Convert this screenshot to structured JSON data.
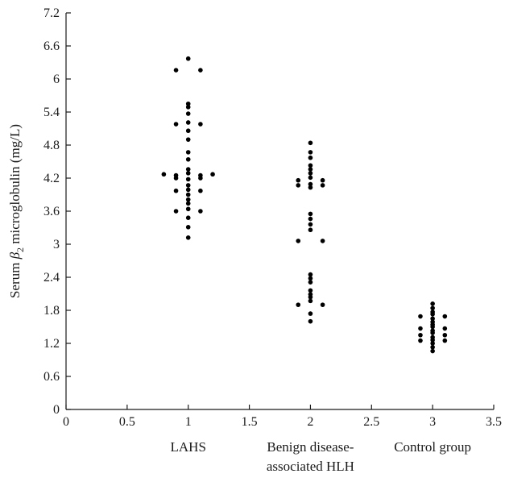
{
  "chart_data": {
    "type": "scatter",
    "ylabel": {
      "prefix": "Serum ",
      "beta": "β",
      "sub": "2",
      "suffix": " microglobulin (mg/L)"
    },
    "xlim": [
      0,
      3.5
    ],
    "ylim": [
      0,
      7.2
    ],
    "x_ticks": [
      "0",
      "0.5",
      "1",
      "1.5",
      "2",
      "2.5",
      "3",
      "3.5"
    ],
    "y_ticks": [
      "0",
      "0.6",
      "1.2",
      "1.8",
      "2.4",
      "3",
      "3.6",
      "4.2",
      "4.8",
      "5.4",
      "6",
      "6.6",
      "7.2"
    ],
    "grid": false,
    "groups": [
      {
        "x": 1,
        "label_lines": [
          "LAHS"
        ]
      },
      {
        "x": 2,
        "label_lines": [
          "Benign disease-",
          "associated HLH"
        ]
      },
      {
        "x": 3,
        "label_lines": [
          "Control group"
        ]
      }
    ],
    "points": [
      [
        1,
        6.37
      ],
      [
        0.9,
        6.16
      ],
      [
        1.1,
        6.16
      ],
      [
        1,
        5.55
      ],
      [
        1,
        5.49
      ],
      [
        1,
        5.37
      ],
      [
        1,
        5.21
      ],
      [
        0.9,
        5.18
      ],
      [
        1.1,
        5.18
      ],
      [
        1,
        5.06
      ],
      [
        1,
        4.9
      ],
      [
        1,
        4.67
      ],
      [
        1,
        4.54
      ],
      [
        1,
        4.36
      ],
      [
        0.8,
        4.27
      ],
      [
        0.9,
        4.25
      ],
      [
        1.1,
        4.25
      ],
      [
        1.2,
        4.27
      ],
      [
        1,
        4.29
      ],
      [
        0.9,
        4.2
      ],
      [
        1.1,
        4.2
      ],
      [
        1,
        4.18
      ],
      [
        1,
        4.07
      ],
      [
        1,
        3.99
      ],
      [
        0.9,
        3.97
      ],
      [
        1.1,
        3.97
      ],
      [
        1,
        3.9
      ],
      [
        1,
        3.81
      ],
      [
        1,
        3.74
      ],
      [
        1,
        3.64
      ],
      [
        0.9,
        3.6
      ],
      [
        1.1,
        3.6
      ],
      [
        1,
        3.48
      ],
      [
        1,
        3.31
      ],
      [
        1,
        3.12
      ],
      [
        2,
        4.84
      ],
      [
        2,
        4.67
      ],
      [
        2,
        4.57
      ],
      [
        2,
        4.43
      ],
      [
        2,
        4.36
      ],
      [
        2,
        4.29
      ],
      [
        2,
        4.21
      ],
      [
        1.9,
        4.16
      ],
      [
        2.1,
        4.16
      ],
      [
        1.9,
        4.07
      ],
      [
        2.1,
        4.07
      ],
      [
        2,
        4.09
      ],
      [
        2,
        4.03
      ],
      [
        2,
        3.55
      ],
      [
        2,
        3.46
      ],
      [
        2,
        3.36
      ],
      [
        2,
        3.26
      ],
      [
        1.9,
        3.06
      ],
      [
        2.1,
        3.06
      ],
      [
        2,
        2.45
      ],
      [
        2,
        2.38
      ],
      [
        2,
        2.31
      ],
      [
        2,
        2.16
      ],
      [
        2,
        2.09
      ],
      [
        2,
        2.04
      ],
      [
        2,
        1.97
      ],
      [
        1.9,
        1.9
      ],
      [
        2.1,
        1.9
      ],
      [
        2,
        1.74
      ],
      [
        2,
        1.6
      ],
      [
        3,
        1.92
      ],
      [
        3,
        1.84
      ],
      [
        3,
        1.77
      ],
      [
        3,
        1.73
      ],
      [
        2.9,
        1.69
      ],
      [
        3.1,
        1.69
      ],
      [
        3,
        1.65
      ],
      [
        3,
        1.59
      ],
      [
        3,
        1.54
      ],
      [
        3,
        1.5
      ],
      [
        2.9,
        1.47
      ],
      [
        3.1,
        1.47
      ],
      [
        3,
        1.43
      ],
      [
        3,
        1.39
      ],
      [
        2.9,
        1.35
      ],
      [
        3.1,
        1.35
      ],
      [
        3,
        1.31
      ],
      [
        2.9,
        1.25
      ],
      [
        3.1,
        1.25
      ],
      [
        3,
        1.26
      ],
      [
        3,
        1.2
      ],
      [
        3,
        1.13
      ],
      [
        3,
        1.06
      ]
    ]
  }
}
